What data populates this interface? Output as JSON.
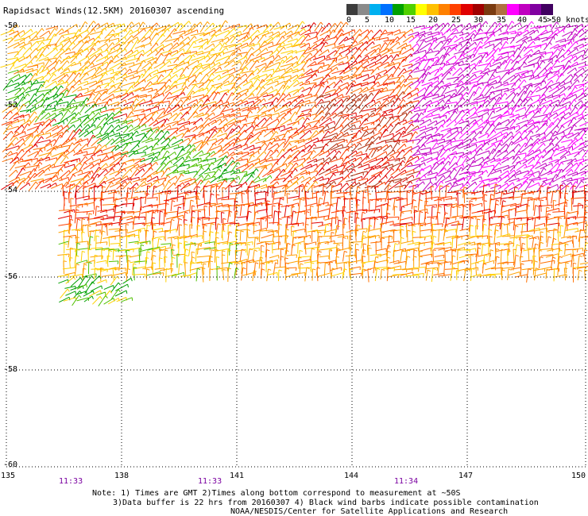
{
  "title": "Rapidsact Winds(12.5KM) 20160307 ascending",
  "legend": {
    "ticks": [
      "0",
      "5",
      "10",
      "15",
      "20",
      "25",
      "30",
      "35",
      "40",
      "45",
      ">50 knots"
    ],
    "colors": [
      "#3c3c3c",
      "#8a8a8a",
      "#00b0f0",
      "#0070ff",
      "#00a000",
      "#50d000",
      "#ffff00",
      "#ffc000",
      "#ff8000",
      "#ff4000",
      "#e00000",
      "#a00000",
      "#7a3b10",
      "#b07040",
      "#ff00ff",
      "#c000c0",
      "#8000a0",
      "#400060"
    ]
  },
  "axes": {
    "lat_labels": [
      "-50",
      "-52",
      "-54",
      "-56",
      "-58",
      "-60"
    ],
    "lon_labels": [
      "135",
      "138",
      "141",
      "144",
      "147",
      "150"
    ],
    "times": [
      "11:33",
      "11:33",
      "11:34"
    ]
  },
  "notes": {
    "line1": "Note: 1) Times are GMT 2)Times along bottom correspond to measurement at ~50S",
    "line2": "3)Data buffer is 22 hrs from 20160307 4) Black wind barbs indicate possible contamination",
    "line3": "NOAA/NESDIS/Center for Satellite Applications and Research"
  }
}
